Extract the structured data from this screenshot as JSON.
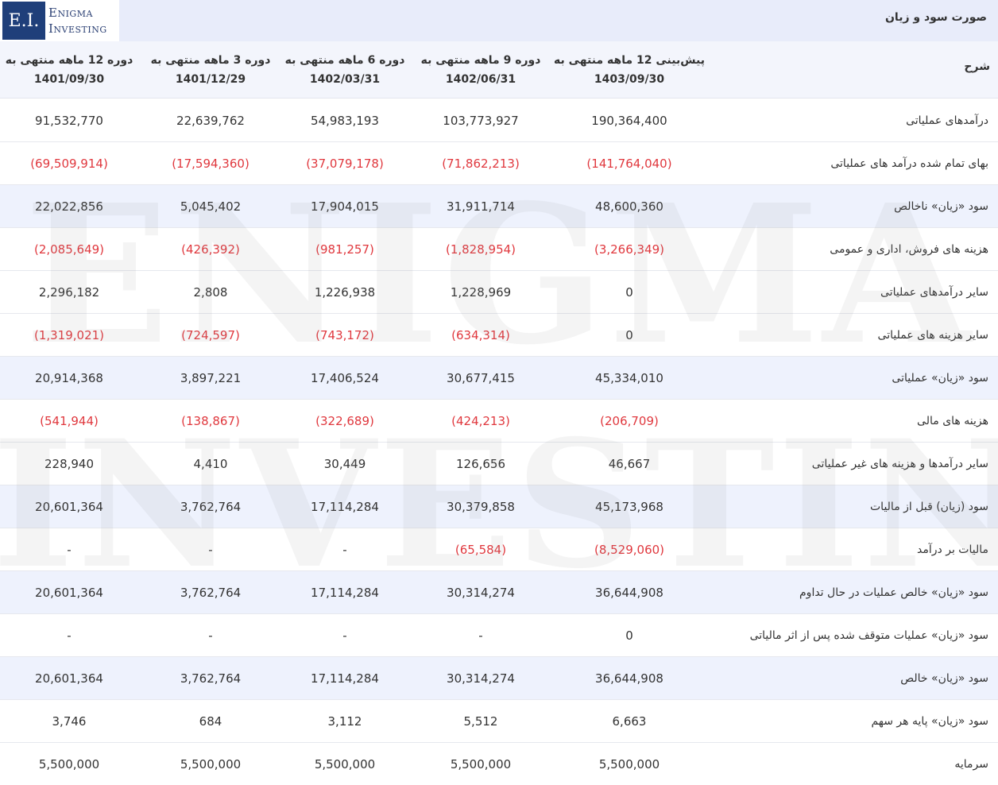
{
  "brand": {
    "mark": "E.I.",
    "line1": "Enigma",
    "line2": "Investing"
  },
  "watermark": {
    "line1": "ENIGMA",
    "line2": "INVESTING"
  },
  "title": "صورت سود و زیان",
  "header": {
    "description": "شرح",
    "columns": [
      {
        "line1": "پیش‌بینی 12 ماهه منتهی به",
        "line2": "1403/09/30"
      },
      {
        "line1": "دوره 9 ماهه منتهی به",
        "line2": "1402/06/31"
      },
      {
        "line1": "دوره 6 ماهه منتهی به",
        "line2": "1402/03/31"
      },
      {
        "line1": "دوره 3 ماهه منتهی به",
        "line2": "1401/12/29"
      },
      {
        "line1": "دوره 12 ماهه منتهی به",
        "line2": "1401/09/30"
      }
    ]
  },
  "rows": [
    {
      "label": "درآمدهای عملیاتی",
      "values": [
        "190,364,400",
        "103,773,927",
        "54,983,193",
        "22,639,762",
        "91,532,770"
      ]
    },
    {
      "label": "بهای تمام شده درآمد های عملیاتی",
      "values": [
        "(141,764,040)",
        "(71,862,213)",
        "(37,079,178)",
        "(17,594,360)",
        "(69,509,914)"
      ]
    },
    {
      "label": "سود «زیان» ناخالص",
      "values": [
        "48,600,360",
        "31,911,714",
        "17,904,015",
        "5,045,402",
        "22,022,856"
      ]
    },
    {
      "label": "هزینه های فروش، اداری و عمومی",
      "values": [
        "(3,266,349)",
        "(1,828,954)",
        "(981,257)",
        "(426,392)",
        "(2,085,649)"
      ]
    },
    {
      "label": "سایر درآمدهای عملیاتی",
      "values": [
        "0",
        "1,228,969",
        "1,226,938",
        "2,808",
        "2,296,182"
      ]
    },
    {
      "label": "سایر هزینه های عملیاتی",
      "values": [
        "0",
        "(634,314)",
        "(743,172)",
        "(724,597)",
        "(1,319,021)"
      ]
    },
    {
      "label": "سود «زیان» عملیاتی",
      "values": [
        "45,334,010",
        "30,677,415",
        "17,406,524",
        "3,897,221",
        "20,914,368"
      ]
    },
    {
      "label": "هزینه های مالی",
      "values": [
        "(206,709)",
        "(424,213)",
        "(322,689)",
        "(138,867)",
        "(541,944)"
      ]
    },
    {
      "label": "سایر درآمدها و هزینه های غیر عملیاتی",
      "values": [
        "46,667",
        "126,656",
        "30,449",
        "4,410",
        "228,940"
      ]
    },
    {
      "label": "سود (زیان) قبل از مالیات",
      "values": [
        "45,173,968",
        "30,379,858",
        "17,114,284",
        "3,762,764",
        "20,601,364"
      ]
    },
    {
      "label": "مالیات بر درآمد",
      "values": [
        "(8,529,060)",
        "(65,584)",
        "-",
        "-",
        "-"
      ]
    },
    {
      "label": "سود «زیان» خالص عملیات در حال تداوم",
      "values": [
        "36,644,908",
        "30,314,274",
        "17,114,284",
        "3,762,764",
        "20,601,364"
      ]
    },
    {
      "label": "سود «زیان» عملیات متوقف شده پس از اثر مالیاتی",
      "values": [
        "0",
        "-",
        "-",
        "-",
        "-"
      ]
    },
    {
      "label": "سود «زیان» خالص",
      "values": [
        "36,644,908",
        "30,314,274",
        "17,114,284",
        "3,762,764",
        "20,601,364"
      ]
    },
    {
      "label": "سود «زیان» پایه هر سهم",
      "values": [
        "6,663",
        "5,512",
        "3,112",
        "684",
        "3,746"
      ]
    },
    {
      "label": "سرمایه",
      "values": [
        "5,500,000",
        "5,500,000",
        "5,500,000",
        "5,500,000",
        "5,500,000"
      ]
    }
  ],
  "highlight_rows": [
    2,
    6,
    9,
    11,
    13
  ],
  "colors": {
    "negative": "#e0383e",
    "header_bg": "#e8ecfa",
    "highlight_bg": "#eef2fd",
    "brand": "#1f3f7a"
  }
}
